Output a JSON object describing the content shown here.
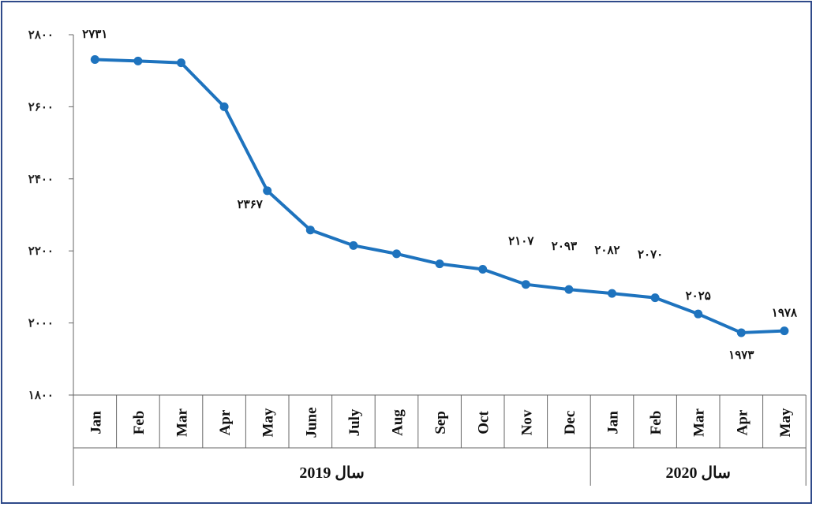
{
  "chart_data": {
    "type": "line",
    "color": "#1e73be",
    "ylim": [
      1800,
      2800
    ],
    "y_ticks": [
      {
        "value": 1800,
        "label": "۱۸۰۰"
      },
      {
        "value": 2000,
        "label": "۲۰۰۰"
      },
      {
        "value": 2200,
        "label": "۲۲۰۰"
      },
      {
        "value": 2400,
        "label": "۲۴۰۰"
      },
      {
        "value": 2600,
        "label": "۲۶۰۰"
      },
      {
        "value": 2800,
        "label": "۲۸۰۰"
      }
    ],
    "categories": [
      "Jan",
      "Feb",
      "Mar",
      "Apr",
      "May",
      "June",
      "July",
      "Aug",
      "Sep",
      "Oct",
      "Nov",
      "Dec",
      "Jan",
      "Feb",
      "Mar",
      "Apr",
      "May"
    ],
    "values": [
      2731,
      2727,
      2722,
      2600,
      2367,
      2258,
      2215,
      2192,
      2164,
      2149,
      2107,
      2093,
      2082,
      2070,
      2025,
      1973,
      1978
    ],
    "data_labels": [
      {
        "index": 0,
        "text": "۲۷۳۱",
        "pos": "above"
      },
      {
        "index": 4,
        "text": "۲۳۶۷",
        "pos": "below-left"
      },
      {
        "index": 10,
        "text": "۲۱۰۷",
        "pos": "high"
      },
      {
        "index": 11,
        "text": "۲۰۹۳",
        "pos": "high"
      },
      {
        "index": 12,
        "text": "۲۰۸۲",
        "pos": "high"
      },
      {
        "index": 13,
        "text": "۲۰۷۰",
        "pos": "high"
      },
      {
        "index": 14,
        "text": "۲۰۲۵",
        "pos": "above"
      },
      {
        "index": 15,
        "text": "۱۹۷۳",
        "pos": "below"
      },
      {
        "index": 16,
        "text": "۱۹۷۸",
        "pos": "above"
      }
    ],
    "groups": [
      {
        "label": "سال 2019",
        "start": 0,
        "end": 11
      },
      {
        "label": "سال 2020",
        "start": 12,
        "end": 16
      }
    ]
  }
}
